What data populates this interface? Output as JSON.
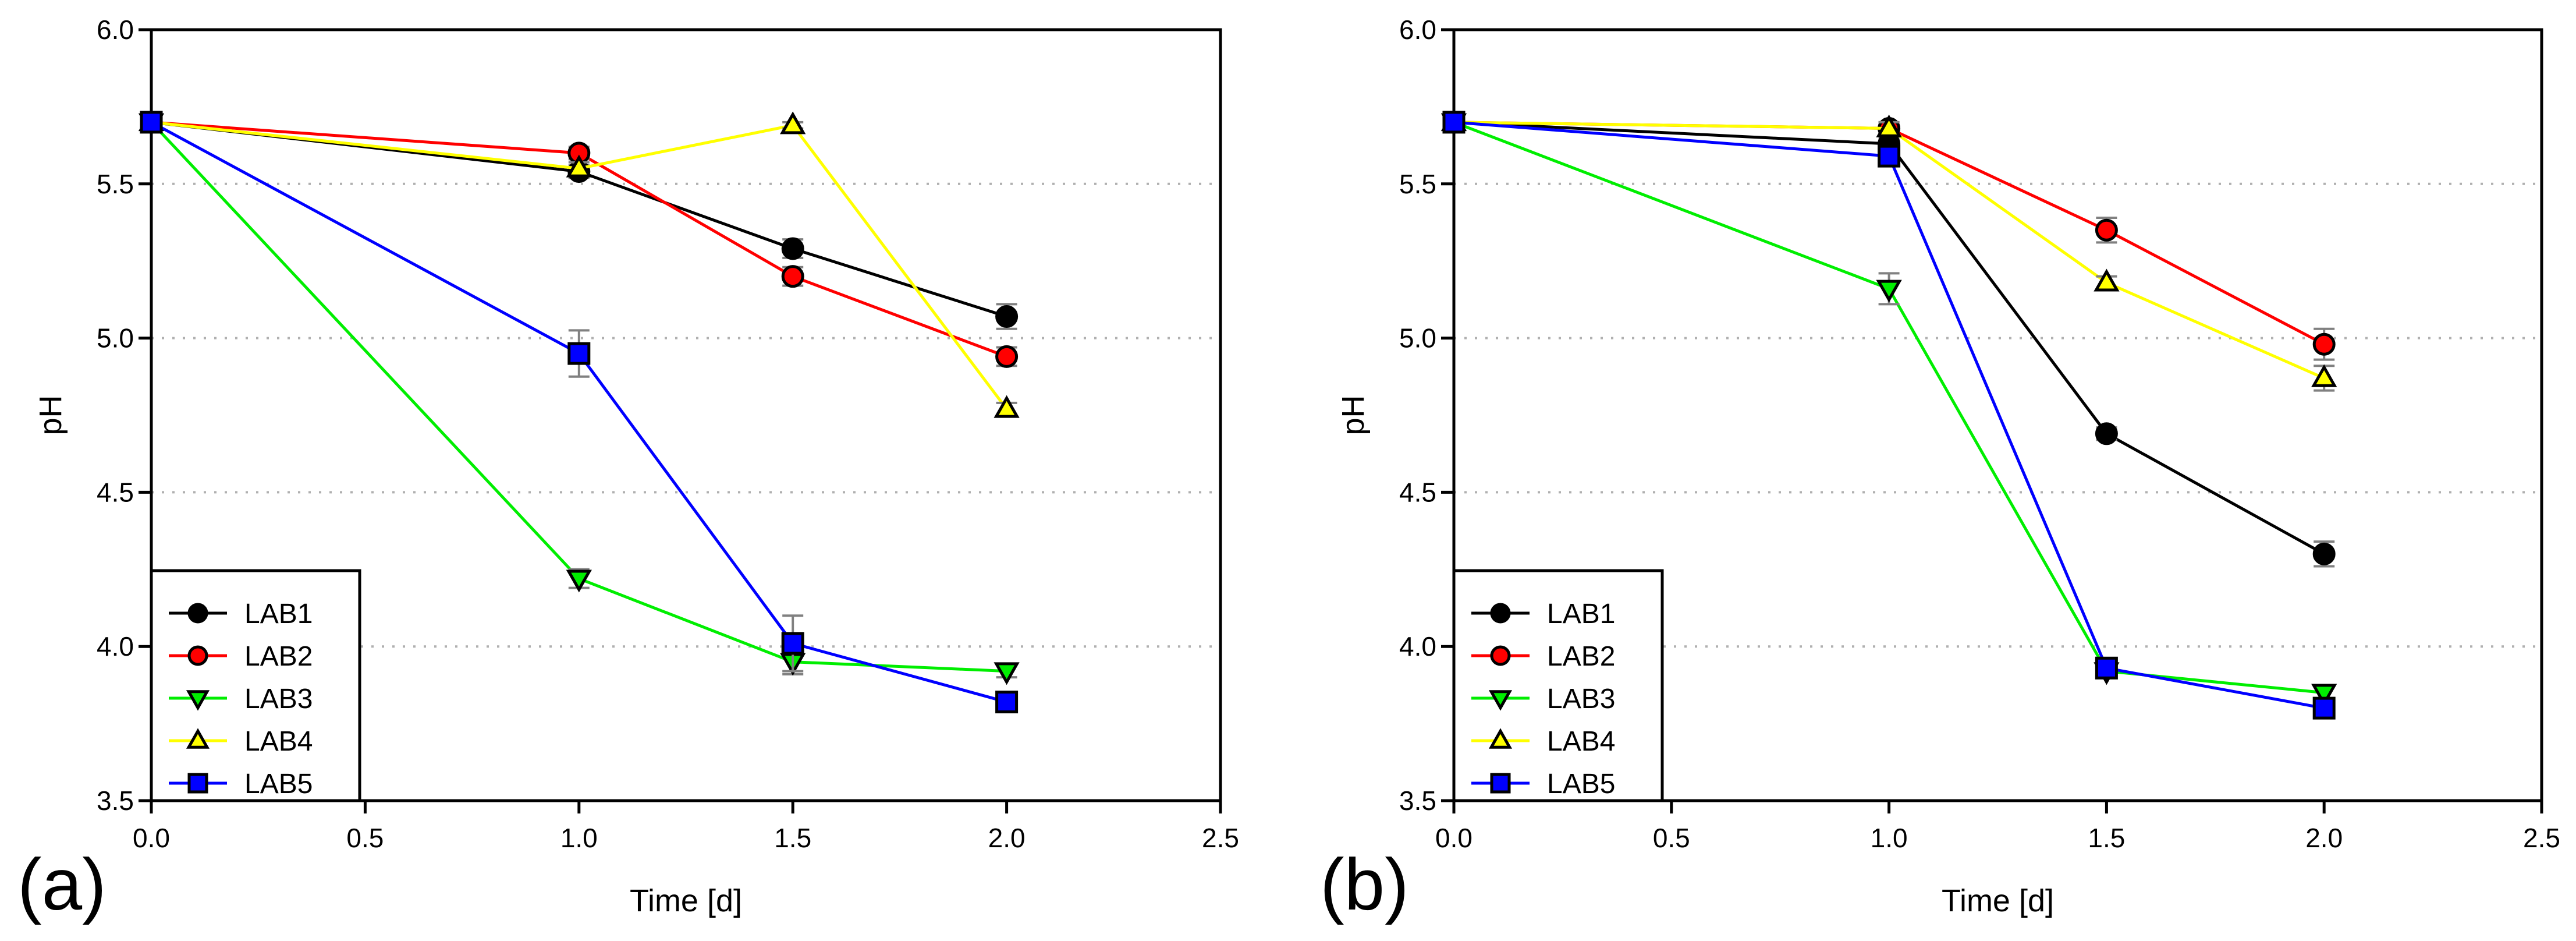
{
  "colors": {
    "LAB1": "#000000",
    "LAB2": "#ff0000",
    "LAB3": "#00ee00",
    "LAB4": "#ffff00",
    "LAB5": "#0000ff",
    "error_bar": "#808080",
    "grid": "#b0b0b0"
  },
  "chart_data": [
    {
      "type": "line",
      "panel_label": "(a)",
      "xlabel": "Time [d]",
      "ylabel": "pH",
      "xlim": [
        0,
        2.5
      ],
      "ylim": [
        3.5,
        6.0
      ],
      "xticks": [
        "0.0",
        "0.5",
        "1.0",
        "1.5",
        "2.0",
        "2.5"
      ],
      "yticks": [
        "3.5",
        "4.0",
        "4.5",
        "5.0",
        "5.5",
        "6.0"
      ],
      "grid": "horizontal dotted",
      "legend_position": "bottom-left",
      "x": [
        0,
        1,
        1.5,
        2
      ],
      "series": [
        {
          "name": "LAB1",
          "marker": "circle",
          "values": [
            5.7,
            5.54,
            5.29,
            5.07
          ],
          "errors": [
            0.01,
            0.02,
            0.03,
            0.04
          ]
        },
        {
          "name": "LAB2",
          "marker": "circle",
          "values": [
            5.7,
            5.6,
            5.2,
            4.94
          ],
          "errors": [
            0.01,
            0.02,
            0.03,
            0.03
          ]
        },
        {
          "name": "LAB3",
          "marker": "triangle-down",
          "values": [
            5.7,
            4.22,
            3.95,
            3.92
          ],
          "errors": [
            0.01,
            0.03,
            0.04,
            0.02
          ]
        },
        {
          "name": "LAB4",
          "marker": "triangle-up",
          "values": [
            5.7,
            5.55,
            5.69,
            4.77
          ],
          "errors": [
            0.01,
            0.02,
            0.01,
            0.02
          ]
        },
        {
          "name": "LAB5",
          "marker": "square",
          "values": [
            5.7,
            4.95,
            4.01,
            3.82
          ],
          "errors": [
            0.01,
            0.075,
            0.09,
            0.02
          ]
        }
      ]
    },
    {
      "type": "line",
      "panel_label": "(b)",
      "xlabel": "Time [d]",
      "ylabel": "pH",
      "xlim": [
        0,
        2.5
      ],
      "ylim": [
        3.5,
        6.0
      ],
      "xticks": [
        "0.0",
        "0.5",
        "1.0",
        "1.5",
        "2.0",
        "2.5"
      ],
      "yticks": [
        "3.5",
        "4.0",
        "4.5",
        "5.0",
        "5.5",
        "6.0"
      ],
      "grid": "horizontal dotted",
      "legend_position": "bottom-left",
      "x": [
        0,
        1,
        1.5,
        2
      ],
      "series": [
        {
          "name": "LAB1",
          "marker": "circle",
          "values": [
            5.7,
            5.63,
            4.69,
            4.3
          ],
          "errors": [
            0.01,
            0.02,
            0.02,
            0.04
          ]
        },
        {
          "name": "LAB2",
          "marker": "circle",
          "values": [
            5.7,
            5.68,
            5.35,
            4.98
          ],
          "errors": [
            0.01,
            0.02,
            0.04,
            0.05
          ]
        },
        {
          "name": "LAB3",
          "marker": "triangle-down",
          "values": [
            5.7,
            5.16,
            3.92,
            3.85
          ],
          "errors": [
            0.01,
            0.05,
            0.02,
            0.02
          ]
        },
        {
          "name": "LAB4",
          "marker": "triangle-up",
          "values": [
            5.7,
            5.68,
            5.18,
            4.87
          ],
          "errors": [
            0.01,
            0.02,
            0.02,
            0.04
          ]
        },
        {
          "name": "LAB5",
          "marker": "square",
          "values": [
            5.7,
            5.59,
            3.93,
            3.8
          ],
          "errors": [
            0.01,
            0.03,
            0.02,
            0.02
          ]
        }
      ]
    }
  ]
}
